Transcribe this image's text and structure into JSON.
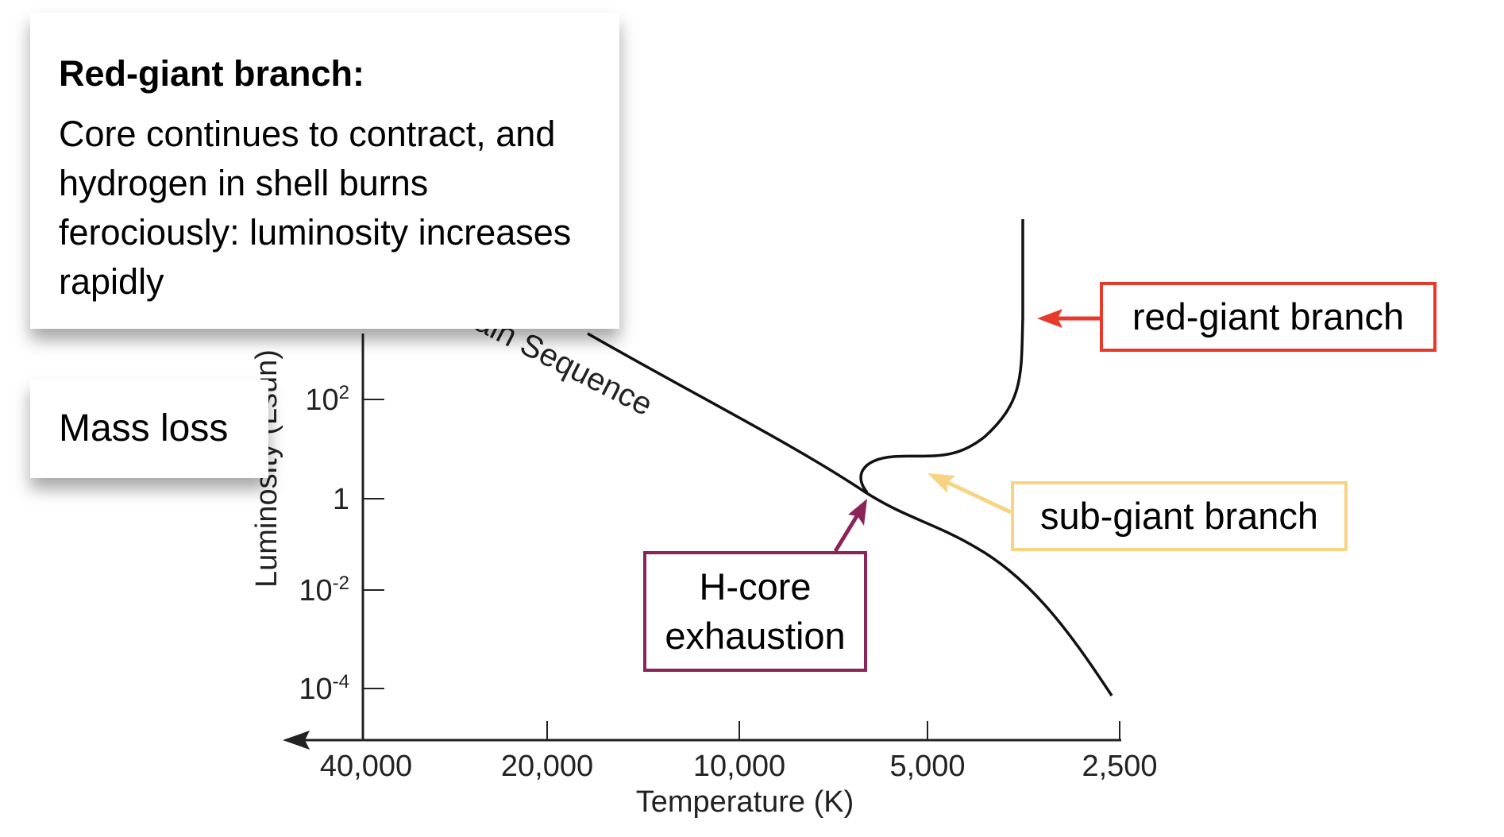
{
  "info": {
    "title": "Red-giant branch:",
    "body": "Core continues to contract, and hydrogen in shell burns ferociously: luminosity increases rapidly"
  },
  "mass_loss": "Mass loss",
  "labels": {
    "red_giant_branch": "red-giant branch",
    "sub_giant_branch": "sub-giant branch",
    "h_core_line1": "H-core",
    "h_core_line2": "exhaustion"
  },
  "diagram": {
    "main_sequence_label": "Main Sequence",
    "y_axis_label": "Luminosity (Lsun)",
    "x_axis_label": "Temperature (K)",
    "x_ticks": [
      "40,000",
      "20,000",
      "10,000",
      "5,000",
      "2,500"
    ],
    "y_ticks": [
      {
        "base": "10",
        "exp": "2"
      },
      {
        "base": "1",
        "exp": ""
      },
      {
        "base": "10",
        "exp": "-2"
      },
      {
        "base": "10",
        "exp": "-4"
      }
    ]
  },
  "colors": {
    "red_giant": "#e83a2a",
    "sub_giant": "#f6d482",
    "h_core": "#8b2458"
  }
}
